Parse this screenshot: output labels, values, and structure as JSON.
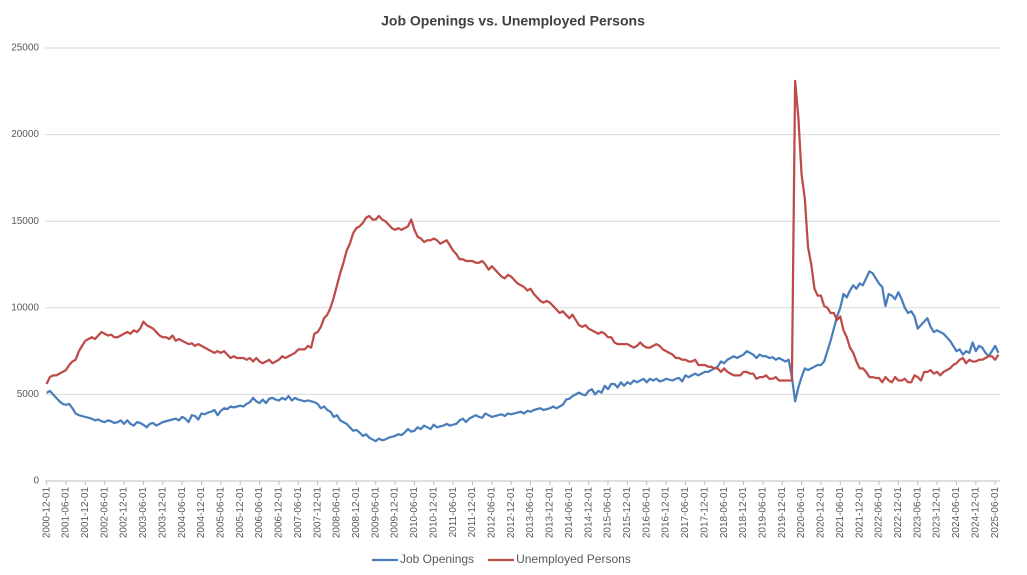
{
  "chart_data": {
    "type": "line",
    "title": "Job Openings vs. Unemployed Persons",
    "categories": [
      "2000-12-01",
      null,
      null,
      null,
      null,
      null,
      "2001-06-01",
      null,
      null,
      null,
      null,
      null,
      "2001-12-01",
      null,
      null,
      null,
      null,
      null,
      "2002-06-01",
      null,
      null,
      null,
      null,
      null,
      "2002-12-01",
      null,
      null,
      null,
      null,
      null,
      "2003-06-01",
      null,
      null,
      null,
      null,
      null,
      "2003-12-01",
      null,
      null,
      null,
      null,
      null,
      "2004-06-01",
      null,
      null,
      null,
      null,
      null,
      "2004-12-01",
      null,
      null,
      null,
      null,
      null,
      "2005-06-01",
      null,
      null,
      null,
      null,
      null,
      "2005-12-01",
      null,
      null,
      null,
      null,
      null,
      "2006-06-01",
      null,
      null,
      null,
      null,
      null,
      "2006-12-01",
      null,
      null,
      null,
      null,
      null,
      "2007-06-01",
      null,
      null,
      null,
      null,
      null,
      "2007-12-01",
      null,
      null,
      null,
      null,
      null,
      "2008-06-01",
      null,
      null,
      null,
      null,
      null,
      "2008-12-01",
      null,
      null,
      null,
      null,
      null,
      "2009-06-01",
      null,
      null,
      null,
      null,
      null,
      "2009-12-01",
      null,
      null,
      null,
      null,
      null,
      "2010-06-01",
      null,
      null,
      null,
      null,
      null,
      "2010-12-01",
      null,
      null,
      null,
      null,
      null,
      "2011-06-01",
      null,
      null,
      null,
      null,
      null,
      "2011-12-01",
      null,
      null,
      null,
      null,
      null,
      "2012-06-01",
      null,
      null,
      null,
      null,
      null,
      "2012-12-01",
      null,
      null,
      null,
      null,
      null,
      "2013-06-01",
      null,
      null,
      null,
      null,
      null,
      "2013-12-01",
      null,
      null,
      null,
      null,
      null,
      "2014-06-01",
      null,
      null,
      null,
      null,
      null,
      "2014-12-01",
      null,
      null,
      null,
      null,
      null,
      "2015-06-01",
      null,
      null,
      null,
      null,
      null,
      "2015-12-01",
      null,
      null,
      null,
      null,
      null,
      "2016-06-01",
      null,
      null,
      null,
      null,
      null,
      "2016-12-01",
      null,
      null,
      null,
      null,
      null,
      "2017-06-01",
      null,
      null,
      null,
      null,
      null,
      "2017-12-01",
      null,
      null,
      null,
      null,
      null,
      "2018-06-01",
      null,
      null,
      null,
      null,
      null,
      "2018-12-01",
      null,
      null,
      null,
      null,
      null,
      "2019-06-01",
      null,
      null,
      null,
      null,
      null,
      "2019-12-01",
      null,
      null,
      null,
      null,
      null,
      "2020-06-01",
      null,
      null,
      null,
      null,
      null,
      "2020-12-01",
      null,
      null,
      null,
      null,
      null,
      "2021-06-01",
      null,
      null,
      null,
      null,
      null,
      "2021-12-01",
      null,
      null,
      null,
      null,
      null,
      "2022-06-01",
      null,
      null,
      null,
      null,
      null,
      "2022-12-01",
      null,
      null,
      null,
      null,
      null,
      "2023-06-01",
      null,
      null,
      null,
      null,
      null,
      "2023-12-01",
      null,
      null,
      null,
      null,
      null,
      "2024-06-01",
      null,
      null,
      null,
      null,
      null,
      "2024-12-01",
      null,
      null,
      null,
      null,
      null,
      "2025-06-01",
      null
    ],
    "series": [
      {
        "name": "Job Openings",
        "color": "#4a7ebb",
        "values": [
          5088,
          5200,
          5000,
          4800,
          4600,
          4450,
          4400,
          4450,
          4200,
          3900,
          3800,
          3750,
          3700,
          3650,
          3600,
          3500,
          3550,
          3450,
          3400,
          3500,
          3450,
          3350,
          3400,
          3500,
          3300,
          3500,
          3300,
          3200,
          3400,
          3350,
          3250,
          3100,
          3300,
          3350,
          3200,
          3300,
          3400,
          3450,
          3500,
          3550,
          3600,
          3500,
          3700,
          3600,
          3400,
          3800,
          3750,
          3550,
          3900,
          3850,
          3950,
          4000,
          4100,
          3800,
          4050,
          4200,
          4150,
          4300,
          4250,
          4300,
          4350,
          4300,
          4450,
          4550,
          4800,
          4600,
          4500,
          4700,
          4500,
          4750,
          4800,
          4700,
          4650,
          4800,
          4700,
          4900,
          4650,
          4800,
          4700,
          4650,
          4600,
          4650,
          4600,
          4550,
          4450,
          4200,
          4300,
          4100,
          4000,
          3700,
          3800,
          3500,
          3400,
          3300,
          3100,
          2900,
          2950,
          2800,
          2600,
          2700,
          2500,
          2400,
          2300,
          2450,
          2350,
          2400,
          2500,
          2550,
          2600,
          2700,
          2650,
          2800,
          3000,
          2850,
          2900,
          3100,
          3000,
          3200,
          3100,
          3000,
          3250,
          3100,
          3150,
          3200,
          3300,
          3200,
          3250,
          3300,
          3500,
          3600,
          3400,
          3600,
          3700,
          3800,
          3700,
          3650,
          3900,
          3800,
          3700,
          3750,
          3800,
          3850,
          3750,
          3900,
          3850,
          3900,
          3950,
          4000,
          3900,
          4050,
          4000,
          4100,
          4150,
          4200,
          4100,
          4150,
          4200,
          4300,
          4200,
          4300,
          4400,
          4700,
          4750,
          4900,
          5000,
          5100,
          5000,
          4950,
          5200,
          5300,
          5000,
          5200,
          5100,
          5500,
          5300,
          5600,
          5600,
          5400,
          5700,
          5500,
          5700,
          5600,
          5800,
          5700,
          5800,
          5900,
          5700,
          5900,
          5800,
          5900,
          5750,
          5800,
          5900,
          5850,
          5800,
          5900,
          5950,
          5750,
          6100,
          6000,
          6100,
          6200,
          6100,
          6200,
          6300,
          6300,
          6400,
          6500,
          6600,
          6900,
          6800,
          7000,
          7100,
          7200,
          7100,
          7200,
          7300,
          7500,
          7400,
          7300,
          7100,
          7300,
          7200,
          7200,
          7100,
          7150,
          7000,
          7100,
          7000,
          6900,
          7000,
          6000,
          4600,
          5400,
          6000,
          6500,
          6400,
          6500,
          6600,
          6700,
          6700,
          6900,
          7500,
          8100,
          8800,
          9500,
          10000,
          10800,
          10600,
          11000,
          11300,
          11100,
          11400,
          11300,
          11700,
          12100,
          12000,
          11700,
          11400,
          11200,
          10100,
          10800,
          10700,
          10500,
          10900,
          10500,
          10000,
          9700,
          9800,
          9500,
          8800,
          9000,
          9200,
          9400,
          8900,
          8600,
          8700,
          8600,
          8500,
          8300,
          8100,
          7800,
          7500,
          7600,
          7300,
          7500,
          7400,
          8000,
          7500,
          7800,
          7700,
          7400,
          7200,
          7500,
          7800,
          7400
        ]
      },
      {
        "name": "Unemployed Persons",
        "color": "#be4b48",
        "values": [
          5600,
          6000,
          6100,
          6100,
          6200,
          6300,
          6400,
          6700,
          6900,
          7000,
          7500,
          7800,
          8100,
          8200,
          8300,
          8200,
          8400,
          8600,
          8500,
          8400,
          8450,
          8300,
          8300,
          8400,
          8500,
          8600,
          8500,
          8700,
          8600,
          8800,
          9200,
          9000,
          8900,
          8800,
          8600,
          8400,
          8300,
          8300,
          8200,
          8400,
          8100,
          8200,
          8100,
          8000,
          7900,
          7950,
          7800,
          7900,
          7800,
          7700,
          7600,
          7500,
          7400,
          7500,
          7400,
          7500,
          7300,
          7100,
          7200,
          7100,
          7100,
          7100,
          7000,
          7100,
          6900,
          7100,
          6900,
          6800,
          6900,
          7000,
          6800,
          6900,
          7000,
          7200,
          7100,
          7200,
          7300,
          7400,
          7600,
          7600,
          7600,
          7800,
          7700,
          8500,
          8600,
          8900,
          9400,
          9600,
          10000,
          10600,
          11300,
          12000,
          12600,
          13300,
          13700,
          14300,
          14600,
          14700,
          14900,
          15200,
          15300,
          15100,
          15100,
          15300,
          15100,
          15000,
          14800,
          14600,
          14500,
          14600,
          14500,
          14600,
          14700,
          15100,
          14500,
          14100,
          14000,
          13800,
          13900,
          13900,
          14000,
          13900,
          13700,
          13800,
          13900,
          13600,
          13300,
          13100,
          12800,
          12800,
          12700,
          12700,
          12700,
          12600,
          12600,
          12700,
          12500,
          12200,
          12400,
          12200,
          12000,
          11800,
          11700,
          11900,
          11800,
          11600,
          11400,
          11300,
          11200,
          11000,
          11100,
          10800,
          10600,
          10400,
          10300,
          10400,
          10300,
          10100,
          9900,
          9700,
          9800,
          9600,
          9400,
          9600,
          9300,
          9000,
          8900,
          9000,
          8800,
          8700,
          8600,
          8500,
          8600,
          8500,
          8300,
          8300,
          8000,
          7900,
          7900,
          7900,
          7900,
          7800,
          7700,
          7800,
          8000,
          7800,
          7700,
          7700,
          7800,
          7900,
          7800,
          7600,
          7500,
          7400,
          7300,
          7100,
          7100,
          7000,
          7000,
          6900,
          6900,
          7000,
          6700,
          6700,
          6700,
          6600,
          6600,
          6500,
          6500,
          6300,
          6500,
          6300,
          6200,
          6100,
          6100,
          6100,
          6300,
          6300,
          6200,
          6200,
          5900,
          6000,
          6000,
          6100,
          5900,
          5900,
          6000,
          5800,
          5800,
          5800,
          5800,
          5800,
          23100,
          21000,
          17700,
          16300,
          13500,
          12500,
          11100,
          10700,
          10700,
          10100,
          10000,
          9700,
          9700,
          9300,
          9500,
          8700,
          8300,
          7700,
          7400,
          6900,
          6500,
          6500,
          6300,
          6000,
          6000,
          5950,
          5950,
          5700,
          6000,
          5800,
          5700,
          6000,
          5800,
          5800,
          5900,
          5700,
          5700,
          6100,
          6000,
          5800,
          6300,
          6300,
          6400,
          6200,
          6300,
          6100,
          6300,
          6400,
          6500,
          6700,
          6800,
          7000,
          7100,
          6800,
          7000,
          6900,
          6900,
          7000,
          7000,
          7100,
          7200,
          7200,
          7000,
          7300
        ]
      }
    ],
    "ylim": [
      0,
      25000
    ],
    "yticks": [
      0,
      5000,
      10000,
      15000,
      20000,
      25000
    ],
    "grid": true,
    "legend": "bottom"
  }
}
